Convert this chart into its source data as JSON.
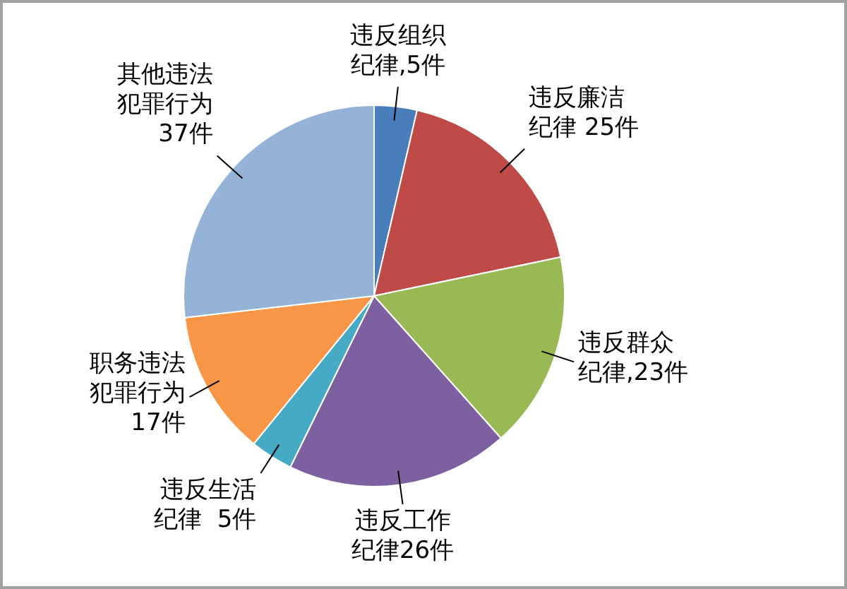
{
  "chart_data": {
    "type": "pie",
    "categories": [
      "违反组织纪律,5件",
      "违反廉洁纪律 25件",
      "违反群众纪律,23件",
      "违反工作纪律26件",
      "违反生活纪律  5件",
      "职务违法犯罪行为17件",
      "其他违法犯罪行为37件"
    ],
    "values": [
      5,
      25,
      23,
      26,
      5,
      17,
      37
    ],
    "colors": [
      "#4a7ebb",
      "#be4b48",
      "#98b954",
      "#7d60a0",
      "#46aac5",
      "#f79646",
      "#95b3d7"
    ],
    "legend": false
  }
}
